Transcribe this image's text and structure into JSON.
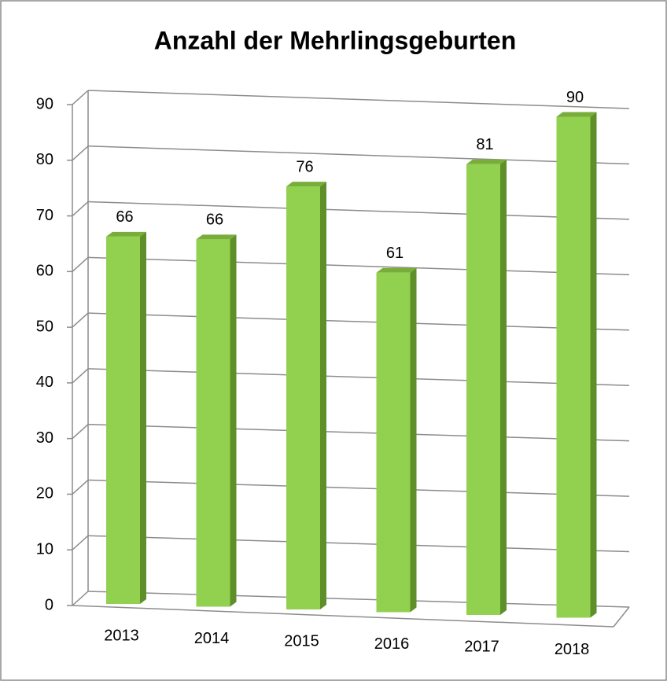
{
  "chart_data": {
    "type": "bar",
    "title": "Anzahl der Mehrlingsgeburten",
    "categories": [
      "2013",
      "2014",
      "2015",
      "2016",
      "2017",
      "2018"
    ],
    "values": [
      66,
      66,
      76,
      61,
      81,
      90
    ],
    "color": "#92d050",
    "ylim": [
      0,
      90
    ],
    "yticks": [
      0,
      10,
      20,
      30,
      40,
      50,
      60,
      70,
      80,
      90
    ],
    "grid": true
  }
}
